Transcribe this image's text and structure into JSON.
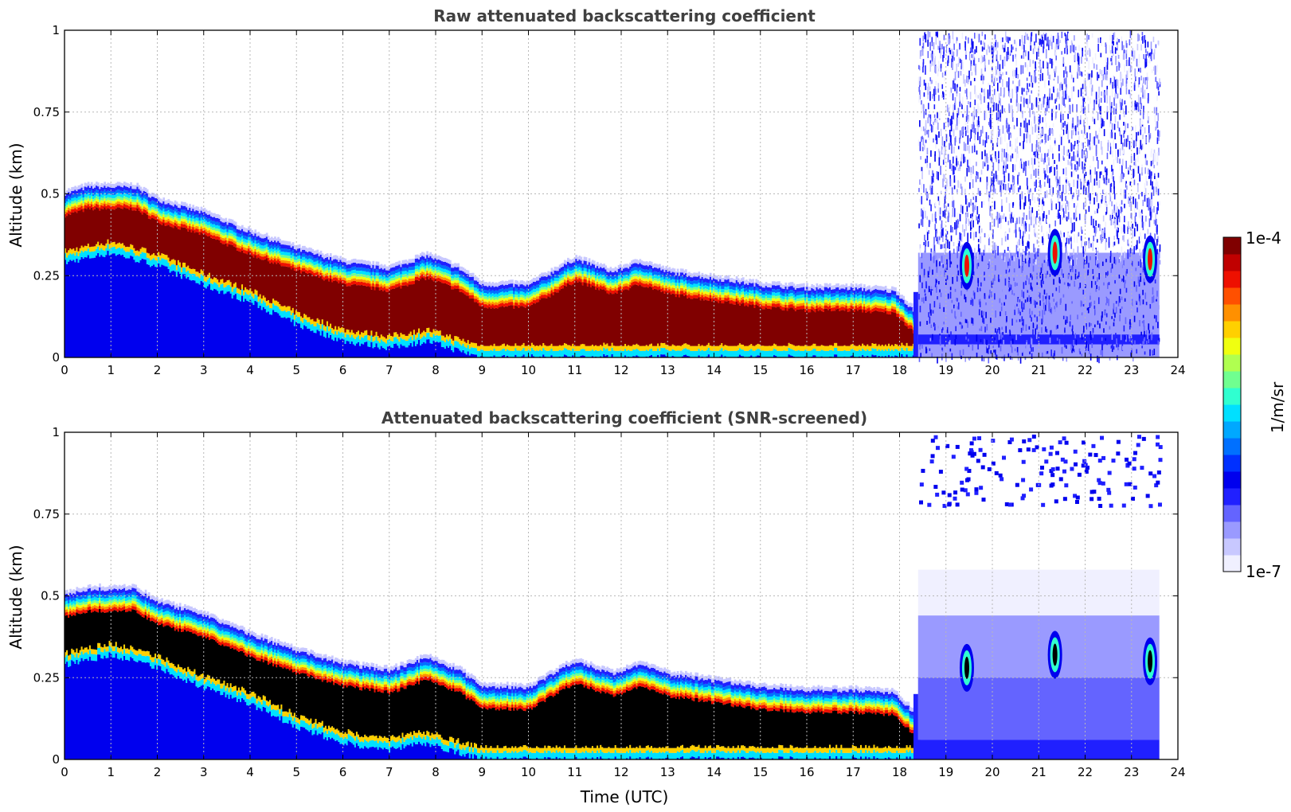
{
  "chart_data": [
    {
      "type": "heatmap",
      "title": "Raw attenuated backscattering coefficient",
      "xlabel": "",
      "ylabel": "Altitude (km)",
      "xlim": [
        0,
        24
      ],
      "ylim": [
        0,
        1
      ],
      "x_ticks": [
        "0",
        "1",
        "2",
        "3",
        "4",
        "5",
        "6",
        "7",
        "8",
        "9",
        "10",
        "11",
        "12",
        "13",
        "14",
        "15",
        "16",
        "17",
        "18",
        "19",
        "20",
        "21",
        "22",
        "23",
        "24"
      ],
      "y_ticks": [
        "0",
        "0.25",
        "0.5",
        "0.75",
        "1"
      ],
      "grid": true,
      "layer_top_km": {
        "time": [
          0,
          0.5,
          1.5,
          2,
          3,
          4,
          5,
          6,
          7,
          7.8,
          8.5,
          9,
          10,
          11,
          11.8,
          12.4,
          13,
          14,
          15,
          16,
          17,
          17.9,
          18.3
        ],
        "value": [
          0.5,
          0.52,
          0.52,
          0.48,
          0.44,
          0.38,
          0.33,
          0.29,
          0.27,
          0.31,
          0.27,
          0.22,
          0.22,
          0.3,
          0.26,
          0.29,
          0.26,
          0.24,
          0.22,
          0.21,
          0.21,
          0.2,
          0.14
        ]
      },
      "layer_base_km": {
        "time": [
          0,
          1,
          2,
          3,
          4,
          5,
          6,
          7,
          7.8,
          8.5,
          9,
          12,
          18,
          18.3
        ],
        "value": [
          0.29,
          0.32,
          0.28,
          0.22,
          0.17,
          0.1,
          0.05,
          0.03,
          0.05,
          0.02,
          0,
          0,
          0,
          0
        ]
      },
      "noise_region_time": [
        18.4,
        23.6
      ],
      "colorscale": "jet",
      "saturated_color": "#800000"
    },
    {
      "type": "heatmap",
      "title": "Attenuated backscattering coefficient (SNR-screened)",
      "xlabel": "Time (UTC)",
      "ylabel": "Altitude (km)",
      "xlim": [
        0,
        24
      ],
      "ylim": [
        0,
        1
      ],
      "x_ticks": [
        "0",
        "1",
        "2",
        "3",
        "4",
        "5",
        "6",
        "7",
        "8",
        "9",
        "10",
        "11",
        "12",
        "13",
        "14",
        "15",
        "16",
        "17",
        "18",
        "19",
        "20",
        "21",
        "22",
        "23",
        "24"
      ],
      "y_ticks": [
        "0",
        "0.25",
        "0.5",
        "0.75",
        "1"
      ],
      "grid": true,
      "layer_top_km": {
        "time": [
          0,
          0.5,
          1.5,
          2,
          3,
          4,
          5,
          6,
          7,
          7.8,
          8.5,
          9,
          10,
          11,
          11.8,
          12.4,
          13,
          14,
          15,
          16,
          17,
          17.9,
          18.3
        ],
        "value": [
          0.5,
          0.52,
          0.52,
          0.48,
          0.44,
          0.38,
          0.33,
          0.29,
          0.27,
          0.31,
          0.27,
          0.22,
          0.22,
          0.3,
          0.26,
          0.29,
          0.26,
          0.24,
          0.22,
          0.21,
          0.21,
          0.2,
          0.14
        ]
      },
      "layer_base_km": {
        "time": [
          0,
          1,
          2,
          3,
          4,
          5,
          6,
          7,
          7.8,
          8.5,
          9,
          12,
          18,
          18.3
        ],
        "value": [
          0.29,
          0.32,
          0.28,
          0.22,
          0.17,
          0.1,
          0.05,
          0.03,
          0.05,
          0.02,
          0,
          0,
          0,
          0
        ]
      },
      "noise_region_time": [
        18.4,
        23.6
      ],
      "colorscale": "jet",
      "saturated_color": "#000000"
    }
  ],
  "colorbar": {
    "max_label": "1e-4",
    "min_label": "1e-7",
    "unit_label": "1/m/sr",
    "colors": [
      "#f0f0ff",
      "#c8c8ff",
      "#9a9aff",
      "#6464ff",
      "#2020ff",
      "#0000ee",
      "#0030ff",
      "#0070ff",
      "#00a8ff",
      "#00e0ff",
      "#30ffd0",
      "#70ff90",
      "#b0ff50",
      "#f0ff10",
      "#ffd000",
      "#ff9000",
      "#ff5000",
      "#ee1000",
      "#c00000",
      "#800000"
    ]
  }
}
